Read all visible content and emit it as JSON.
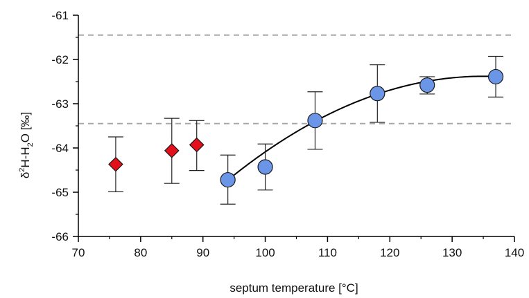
{
  "chart_data": {
    "type": "scatter",
    "title": "",
    "xlabel": "septum temperature [°C]",
    "ylabel_parts": {
      "base": "δ",
      "sup1": "2",
      "mid": "H-H",
      "sub": "2",
      "end": "O [‰]"
    },
    "xlim": [
      70,
      140
    ],
    "ylim": [
      -66,
      -61
    ],
    "x_ticks": [
      70,
      80,
      90,
      100,
      110,
      120,
      130,
      140
    ],
    "y_ticks": [
      -66,
      -65,
      -64,
      -63,
      -62,
      -61
    ],
    "x_tick_labels": [
      "70",
      "80",
      "90",
      "100",
      "110",
      "120",
      "130",
      "140"
    ],
    "y_tick_labels": [
      "-66",
      "-65",
      "-64",
      "-63",
      "-62",
      "-61"
    ],
    "grid": false,
    "reference_lines": [
      -61.45,
      -63.45
    ],
    "series": [
      {
        "marker": "diamond",
        "color": "#e3101b",
        "points": [
          {
            "x": 76,
            "y": -64.37,
            "err_low": -64.99,
            "err_high": -63.75
          },
          {
            "x": 85,
            "y": -64.06,
            "err_low": -64.8,
            "err_high": -63.33
          },
          {
            "x": 89,
            "y": -63.93,
            "err_low": -64.51,
            "err_high": -63.38
          }
        ]
      },
      {
        "marker": "circle",
        "color": "#6b96e8",
        "points": [
          {
            "x": 94,
            "y": -64.72,
            "err_low": -65.27,
            "err_high": -64.16
          },
          {
            "x": 100,
            "y": -64.43,
            "err_low": -64.95,
            "err_high": -63.91
          },
          {
            "x": 108,
            "y": -63.38,
            "err_low": -64.03,
            "err_high": -62.73
          },
          {
            "x": 118,
            "y": -62.77,
            "err_low": -63.42,
            "err_high": -62.12
          },
          {
            "x": 126,
            "y": -62.58,
            "err_low": -62.78,
            "err_high": -62.39
          },
          {
            "x": 137,
            "y": -62.39,
            "err_low": -62.85,
            "err_high": -61.93
          }
        ]
      }
    ],
    "fit_curve": {
      "type": "quadratic",
      "x_range": [
        94,
        137
      ],
      "vertex_x": 135,
      "vertex_y": -62.38,
      "a": -0.001395,
      "color": "#000000"
    }
  }
}
